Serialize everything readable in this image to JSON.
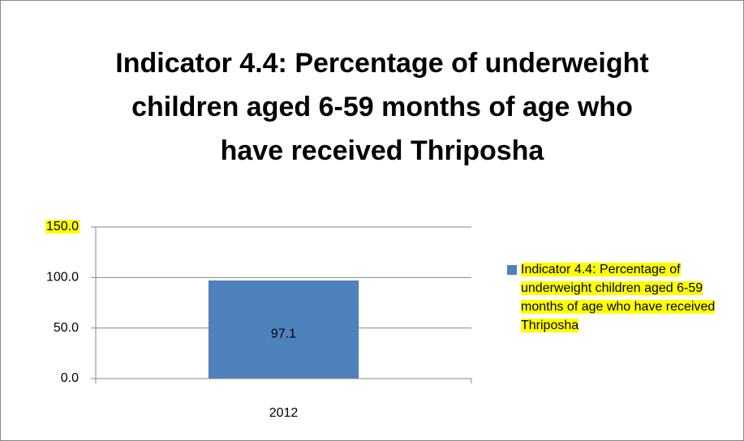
{
  "chart_data": {
    "type": "bar",
    "title": "Indicator 4.4: Percentage of underweight children aged 6-59 months of age who have received Thriposha",
    "categories": [
      "2012"
    ],
    "series": [
      {
        "name": "Indicator 4.4: Percentage of underweight children aged 6-59 months of age who have received Thriposha",
        "color": "#4f81bd",
        "values": [
          97.1
        ]
      }
    ],
    "ylim": [
      0,
      150
    ],
    "yticks": [
      {
        "value": 0,
        "label": "0.0"
      },
      {
        "value": 50,
        "label": "50.0"
      },
      {
        "value": 100,
        "label": "100.0"
      },
      {
        "value": 150,
        "label": "150.0"
      }
    ],
    "grid": true,
    "legend": "right"
  }
}
